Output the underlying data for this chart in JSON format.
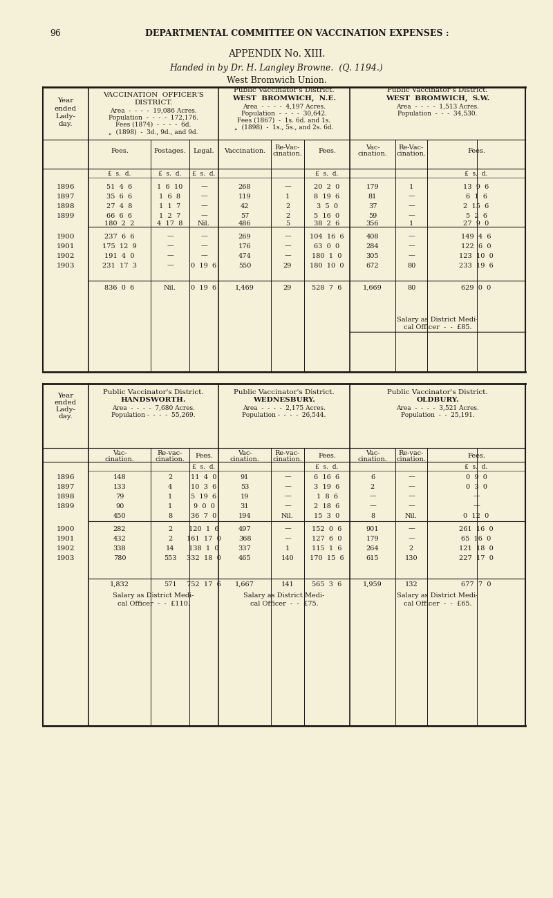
{
  "bg_color": "#f5f0d8",
  "text_color": "#1a1a1a",
  "page_number": "96",
  "header": "DEPARTMENTAL COMMITTEE ON VACCINATION EXPENSES :",
  "title1": "APPENDIX No. XIII.",
  "title2": "Handed in by Dr. H. Langley Browne.  (Q. 1194.)",
  "title3": "West Bromwich Union.",
  "top_table": {
    "rows": [
      [
        "1896",
        "51  4  6",
        "1  6  10",
        "—",
        "268",
        "—",
        "20  2  0",
        "179",
        "1",
        "13  9  6"
      ],
      [
        "1897",
        "35  6  6",
        "1  6  8",
        "—",
        "119",
        "1",
        "8  19  6",
        "81",
        "—",
        "6  1  6"
      ],
      [
        "1898",
        "27  4  8",
        "1  1  7",
        "—",
        "42",
        "2",
        "3  5  0",
        "37",
        "—",
        "2  15  6"
      ],
      [
        "1899",
        "66  6  6",
        "1  2  7",
        "—",
        "57",
        "2",
        "5  16  0",
        "59",
        "—",
        "5  2  6"
      ],
      [
        "",
        "180  2  2",
        "4  17  8",
        "Nil.",
        "486",
        "5",
        "38  2  6",
        "356",
        "1",
        "27  9  0"
      ],
      [
        "1900",
        "237  6  6",
        "—",
        "—",
        "269",
        "—",
        "104  16  6",
        "408",
        "—",
        "149  4  6"
      ],
      [
        "1901",
        "175  12  9",
        "—",
        "—",
        "176",
        "—",
        "63  0  0",
        "284",
        "—",
        "122  6  0"
      ],
      [
        "1902",
        "191  4  0",
        "—",
        "—",
        "474",
        "—",
        "180  1  0",
        "305",
        "—",
        "123  10  0"
      ],
      [
        "1903",
        "231  17  3",
        "—",
        "0  19  6",
        "550",
        "29",
        "180  10  0",
        "672",
        "80",
        "233  19  6"
      ],
      [
        "",
        "836  0  6",
        "Nil.",
        "0  19  6",
        "1,469",
        "29",
        "528  7  6",
        "1,669",
        "80",
        "629  0  0"
      ]
    ],
    "salary_note1": "Salary as District Medi-",
    "salary_note2": "cal Officer  -  -  £85."
  },
  "bottom_table": {
    "districts": [
      {
        "name": "HANDSWORTH.",
        "area": "Area  -  -  -  -  7,680 Acres.",
        "pop": "Population -  -  -  -  55,269.",
        "salary1": "Salary as District Medi-",
        "salary2": "cal Officer  -  -  £110."
      },
      {
        "name": "WEDNESBURY.",
        "area": "Area  -  -  -  -  2,175 Acres.",
        "pop": "Population -  -  -  -  26,544.",
        "salary1": "Salary as District Medi-",
        "salary2": "cal Officer  -  -  £75."
      },
      {
        "name": "OLDBURY.",
        "area": "Area  -  -  -  -  3,521 Acres.",
        "pop": "Population  -  -  25,191.",
        "salary1": "Salary as District Medi-",
        "salary2": "cal Officer  -  -  £65."
      }
    ],
    "rows": [
      [
        "1896",
        "148",
        "2",
        "11  4  0",
        "91",
        "—",
        "6  16  6",
        "6",
        "—",
        "0  9  0"
      ],
      [
        "1897",
        "133",
        "4",
        "10  3  6",
        "53",
        "—",
        "3  19  6",
        "2",
        "—",
        "0  3  0"
      ],
      [
        "1898",
        "79",
        "1",
        "5  19  6",
        "19",
        "—",
        "1  8  6",
        "—",
        "—",
        "—"
      ],
      [
        "1899",
        "90",
        "1",
        "9  0  0",
        "31",
        "—",
        "2  18  6",
        "—",
        "—",
        "—"
      ],
      [
        "",
        "450",
        "8",
        "36  7  0",
        "194",
        "Nil.",
        "15  3  0",
        "8",
        "Nil.",
        "0  12  0"
      ],
      [
        "1900",
        "282",
        "2",
        "120  1  6",
        "497",
        "—",
        "152  0  6",
        "901",
        "—",
        "261  16  0"
      ],
      [
        "1901",
        "432",
        "2",
        "161  17  0",
        "368",
        "—",
        "127  6  0",
        "179",
        "—",
        "65  16  0"
      ],
      [
        "1902",
        "338",
        "14",
        "138  1  0",
        "337",
        "1",
        "115  1  6",
        "264",
        "2",
        "121  18  0"
      ],
      [
        "1903",
        "780",
        "553",
        "332  18  0",
        "465",
        "140",
        "170  15  6",
        "615",
        "130",
        "227  17  0"
      ],
      [
        "",
        "1,832",
        "571",
        "752  17  6",
        "1,667",
        "141",
        "565  3  6",
        "1,959",
        "132",
        "677  7  0"
      ]
    ]
  }
}
